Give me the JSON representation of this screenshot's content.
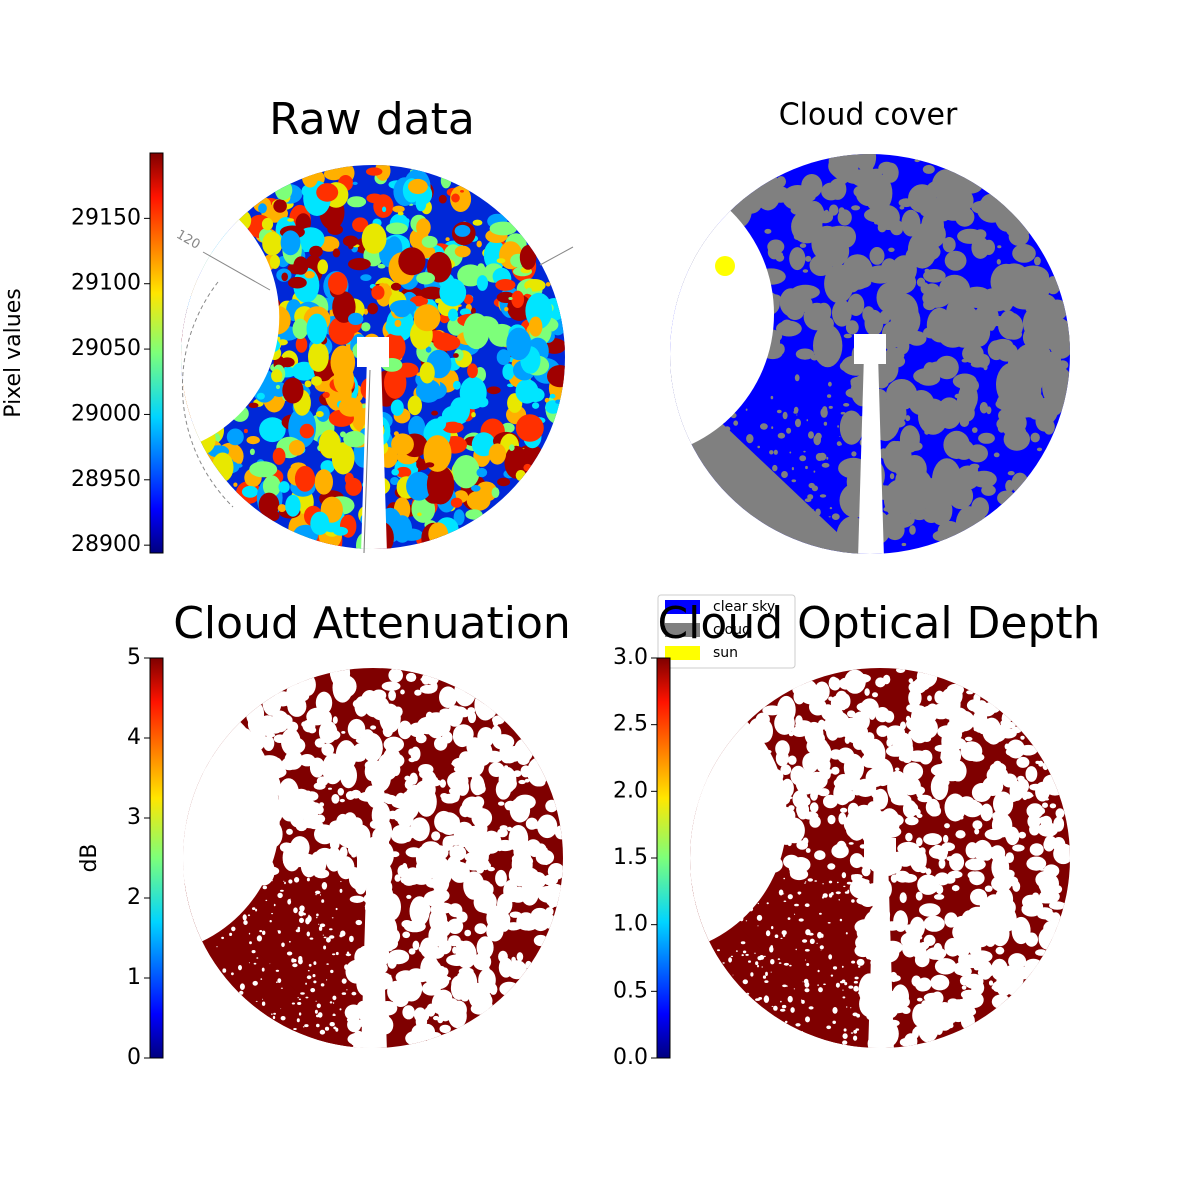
{
  "chart_data": [
    {
      "type": "image",
      "title": "Raw data",
      "colorbar_label": "Pixel values",
      "annotation": "120",
      "ylim": [
        28894,
        29200
      ],
      "yticks": [
        28900,
        28950,
        29000,
        29050,
        29100,
        29150
      ]
    },
    {
      "type": "image",
      "title": "Cloud cover",
      "series": [
        {
          "name": "clear sky",
          "color": "#0000ff"
        },
        {
          "name": "cloud",
          "color": "#808080"
        },
        {
          "name": "sun",
          "color": "#ffff00"
        }
      ]
    },
    {
      "type": "image",
      "title": "Cloud Attenuation",
      "colorbar_label": "dB",
      "ylim": [
        0,
        5
      ],
      "yticks": [
        0,
        1,
        2,
        3,
        4,
        5
      ]
    },
    {
      "type": "image",
      "title": "Cloud Optical Depth",
      "ylim": [
        0,
        3
      ],
      "yticks": [
        {
          "value": 0,
          "label": "0.0"
        },
        {
          "value": 0.5,
          "label": "0.5"
        },
        {
          "value": 1,
          "label": "1.0"
        },
        {
          "value": 1.5,
          "label": "1.5"
        },
        {
          "value": 2,
          "label": "2.0"
        },
        {
          "value": 2.5,
          "label": "2.5"
        },
        {
          "value": 3,
          "label": "3.0"
        }
      ]
    }
  ]
}
